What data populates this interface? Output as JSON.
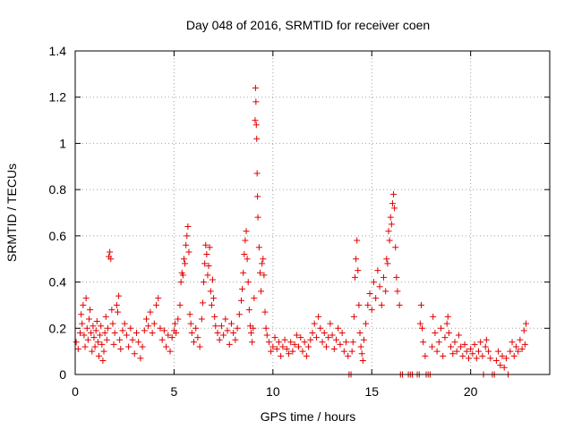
{
  "chart_data": {
    "type": "scatter",
    "title": "Day 048 of 2016, SRMTID for receiver coen",
    "xlabel": "GPS time / hours",
    "ylabel": "SRMTID / TECUs",
    "xlim": [
      0,
      24
    ],
    "ylim": [
      0,
      1.4
    ],
    "x_ticks": [
      0,
      5,
      10,
      15,
      20
    ],
    "x_tick_labels": [
      "0",
      "5",
      "10",
      "15",
      "20"
    ],
    "y_ticks": [
      0,
      0.2,
      0.4,
      0.6,
      0.8,
      1.0,
      1.2,
      1.4
    ],
    "y_tick_labels": [
      "0",
      "0.2",
      "0.4",
      "0.6",
      "0.8",
      "1",
      "1.2",
      "1.4"
    ],
    "grid": true,
    "marker": "+",
    "color": "#e00000",
    "series": [
      {
        "name": "SRMTID",
        "points": [
          [
            0.05,
            0.14
          ],
          [
            0.15,
            0.11
          ],
          [
            0.25,
            0.18
          ],
          [
            0.3,
            0.26
          ],
          [
            0.35,
            0.22
          ],
          [
            0.4,
            0.3
          ],
          [
            0.45,
            0.17
          ],
          [
            0.5,
            0.12
          ],
          [
            0.55,
            0.33
          ],
          [
            0.6,
            0.2
          ],
          [
            0.65,
            0.15
          ],
          [
            0.7,
            0.24
          ],
          [
            0.75,
            0.28
          ],
          [
            0.8,
            0.18
          ],
          [
            0.85,
            0.1
          ],
          [
            0.9,
            0.21
          ],
          [
            0.95,
            0.16
          ],
          [
            1.0,
            0.12
          ],
          [
            1.05,
            0.19
          ],
          [
            1.1,
            0.23
          ],
          [
            1.15,
            0.14
          ],
          [
            1.2,
            0.08
          ],
          [
            1.25,
            0.17
          ],
          [
            1.3,
            0.21
          ],
          [
            1.35,
            0.13
          ],
          [
            1.4,
            0.06
          ],
          [
            1.45,
            0.1
          ],
          [
            1.5,
            0.18
          ],
          [
            1.55,
            0.25
          ],
          [
            1.6,
            0.15
          ],
          [
            1.65,
            0.2
          ],
          [
            1.7,
            0.51
          ],
          [
            1.75,
            0.53
          ],
          [
            1.8,
            0.5
          ],
          [
            1.85,
            0.28
          ],
          [
            1.9,
            0.22
          ],
          [
            1.95,
            0.13
          ],
          [
            2.0,
            0.18
          ],
          [
            2.1,
            0.3
          ],
          [
            2.15,
            0.27
          ],
          [
            2.2,
            0.34
          ],
          [
            2.25,
            0.15
          ],
          [
            2.3,
            0.11
          ],
          [
            2.4,
            0.19
          ],
          [
            2.5,
            0.22
          ],
          [
            2.6,
            0.17
          ],
          [
            2.7,
            0.12
          ],
          [
            2.8,
            0.2
          ],
          [
            2.9,
            0.15
          ],
          [
            3.0,
            0.09
          ],
          [
            3.1,
            0.18
          ],
          [
            3.2,
            0.14
          ],
          [
            3.3,
            0.07
          ],
          [
            3.4,
            0.12
          ],
          [
            3.5,
            0.19
          ],
          [
            3.6,
            0.24
          ],
          [
            3.7,
            0.21
          ],
          [
            3.8,
            0.27
          ],
          [
            3.9,
            0.18
          ],
          [
            4.0,
            0.22
          ],
          [
            4.1,
            0.3
          ],
          [
            4.2,
            0.33
          ],
          [
            4.3,
            0.2
          ],
          [
            4.4,
            0.15
          ],
          [
            4.5,
            0.19
          ],
          [
            4.6,
            0.12
          ],
          [
            4.7,
            0.17
          ],
          [
            4.8,
            0.1
          ],
          [
            4.9,
            0.16
          ],
          [
            5.0,
            0.19
          ],
          [
            5.05,
            0.22
          ],
          [
            5.1,
            0.18
          ],
          [
            5.2,
            0.24
          ],
          [
            5.3,
            0.3
          ],
          [
            5.35,
            0.4
          ],
          [
            5.4,
            0.44
          ],
          [
            5.45,
            0.43
          ],
          [
            5.5,
            0.5
          ],
          [
            5.55,
            0.48
          ],
          [
            5.6,
            0.56
          ],
          [
            5.65,
            0.6
          ],
          [
            5.7,
            0.64
          ],
          [
            5.75,
            0.53
          ],
          [
            5.8,
            0.26
          ],
          [
            5.85,
            0.22
          ],
          [
            5.9,
            0.18
          ],
          [
            6.0,
            0.14
          ],
          [
            6.1,
            0.2
          ],
          [
            6.2,
            0.16
          ],
          [
            6.3,
            0.12
          ],
          [
            6.4,
            0.24
          ],
          [
            6.45,
            0.31
          ],
          [
            6.5,
            0.4
          ],
          [
            6.55,
            0.48
          ],
          [
            6.6,
            0.56
          ],
          [
            6.65,
            0.52
          ],
          [
            6.7,
            0.43
          ],
          [
            6.75,
            0.47
          ],
          [
            6.8,
            0.55
          ],
          [
            6.85,
            0.36
          ],
          [
            6.9,
            0.3
          ],
          [
            6.95,
            0.41
          ],
          [
            7.0,
            0.33
          ],
          [
            7.05,
            0.25
          ],
          [
            7.1,
            0.21
          ],
          [
            7.2,
            0.18
          ],
          [
            7.3,
            0.15
          ],
          [
            7.4,
            0.21
          ],
          [
            7.5,
            0.17
          ],
          [
            7.6,
            0.24
          ],
          [
            7.7,
            0.19
          ],
          [
            7.8,
            0.13
          ],
          [
            7.9,
            0.22
          ],
          [
            8.0,
            0.18
          ],
          [
            8.1,
            0.15
          ],
          [
            8.2,
            0.2
          ],
          [
            8.3,
            0.26
          ],
          [
            8.4,
            0.32
          ],
          [
            8.45,
            0.37
          ],
          [
            8.5,
            0.44
          ],
          [
            8.55,
            0.52
          ],
          [
            8.6,
            0.58
          ],
          [
            8.65,
            0.62
          ],
          [
            8.7,
            0.5
          ],
          [
            8.75,
            0.4
          ],
          [
            8.8,
            0.28
          ],
          [
            8.85,
            0.21
          ],
          [
            8.9,
            0.18
          ],
          [
            8.95,
            0.14
          ],
          [
            9.0,
            0.2
          ],
          [
            9.05,
            0.33
          ],
          [
            9.1,
            1.1
          ],
          [
            9.12,
            1.24
          ],
          [
            9.14,
            1.18
          ],
          [
            9.16,
            1.08
          ],
          [
            9.18,
            1.02
          ],
          [
            9.2,
            0.87
          ],
          [
            9.22,
            0.77
          ],
          [
            9.24,
            0.68
          ],
          [
            9.3,
            0.55
          ],
          [
            9.35,
            0.44
          ],
          [
            9.4,
            0.36
          ],
          [
            9.45,
            0.48
          ],
          [
            9.5,
            0.5
          ],
          [
            9.55,
            0.43
          ],
          [
            9.6,
            0.27
          ],
          [
            9.65,
            0.2
          ],
          [
            9.7,
            0.17
          ],
          [
            9.8,
            0.14
          ],
          [
            9.9,
            0.1
          ],
          [
            10.0,
            0.12
          ],
          [
            10.1,
            0.16
          ],
          [
            10.2,
            0.11
          ],
          [
            10.3,
            0.14
          ],
          [
            10.4,
            0.08
          ],
          [
            10.5,
            0.12
          ],
          [
            10.6,
            0.15
          ],
          [
            10.7,
            0.11
          ],
          [
            10.8,
            0.09
          ],
          [
            10.9,
            0.14
          ],
          [
            11.0,
            0.1
          ],
          [
            11.1,
            0.13
          ],
          [
            11.2,
            0.17
          ],
          [
            11.3,
            0.12
          ],
          [
            11.4,
            0.16
          ],
          [
            11.5,
            0.1
          ],
          [
            11.6,
            0.14
          ],
          [
            11.7,
            0.08
          ],
          [
            11.8,
            0.12
          ],
          [
            11.9,
            0.15
          ],
          [
            12.0,
            0.18
          ],
          [
            12.1,
            0.22
          ],
          [
            12.2,
            0.16
          ],
          [
            12.3,
            0.25
          ],
          [
            12.4,
            0.2
          ],
          [
            12.5,
            0.14
          ],
          [
            12.6,
            0.18
          ],
          [
            12.7,
            0.12
          ],
          [
            12.8,
            0.16
          ],
          [
            12.9,
            0.22
          ],
          [
            13.0,
            0.17
          ],
          [
            13.1,
            0.11
          ],
          [
            13.2,
            0.15
          ],
          [
            13.3,
            0.2
          ],
          [
            13.4,
            0.13
          ],
          [
            13.5,
            0.18
          ],
          [
            13.6,
            0.1
          ],
          [
            13.7,
            0.14
          ],
          [
            13.8,
            0.08
          ],
          [
            13.85,
            0.0
          ],
          [
            13.95,
            0.0
          ],
          [
            14.0,
            0.1
          ],
          [
            14.05,
            0.14
          ],
          [
            14.1,
            0.25
          ],
          [
            14.15,
            0.42
          ],
          [
            14.2,
            0.5
          ],
          [
            14.25,
            0.58
          ],
          [
            14.3,
            0.45
          ],
          [
            14.35,
            0.3
          ],
          [
            14.4,
            0.18
          ],
          [
            14.45,
            0.12
          ],
          [
            14.5,
            0.09
          ],
          [
            14.55,
            0.06
          ],
          [
            14.6,
            0.15
          ],
          [
            14.7,
            0.22
          ],
          [
            14.8,
            0.3
          ],
          [
            14.9,
            0.35
          ],
          [
            15.0,
            0.28
          ],
          [
            15.1,
            0.4
          ],
          [
            15.2,
            0.33
          ],
          [
            15.3,
            0.45
          ],
          [
            15.4,
            0.38
          ],
          [
            15.5,
            0.3
          ],
          [
            15.6,
            0.42
          ],
          [
            15.7,
            0.36
          ],
          [
            15.75,
            0.5
          ],
          [
            15.8,
            0.48
          ],
          [
            15.85,
            0.62
          ],
          [
            15.9,
            0.58
          ],
          [
            15.95,
            0.68
          ],
          [
            16.0,
            0.65
          ],
          [
            16.05,
            0.74
          ],
          [
            16.1,
            0.78
          ],
          [
            16.15,
            0.72
          ],
          [
            16.2,
            0.55
          ],
          [
            16.25,
            0.42
          ],
          [
            16.3,
            0.36
          ],
          [
            16.4,
            0.3
          ],
          [
            16.45,
            0.0
          ],
          [
            16.55,
            0.0
          ],
          [
            16.85,
            0.0
          ],
          [
            16.95,
            0.0
          ],
          [
            17.05,
            0.0
          ],
          [
            17.3,
            0.0
          ],
          [
            17.4,
            0.0
          ],
          [
            17.45,
            0.22
          ],
          [
            17.5,
            0.3
          ],
          [
            17.55,
            0.2
          ],
          [
            17.6,
            0.14
          ],
          [
            17.7,
            0.08
          ],
          [
            17.75,
            0.0
          ],
          [
            17.85,
            0.0
          ],
          [
            17.95,
            0.0
          ],
          [
            18.05,
            0.12
          ],
          [
            18.1,
            0.25
          ],
          [
            18.2,
            0.18
          ],
          [
            18.3,
            0.1
          ],
          [
            18.4,
            0.14
          ],
          [
            18.5,
            0.2
          ],
          [
            18.6,
            0.08
          ],
          [
            18.7,
            0.16
          ],
          [
            18.8,
            0.22
          ],
          [
            18.85,
            0.25
          ],
          [
            18.9,
            0.18
          ],
          [
            19.0,
            0.12
          ],
          [
            19.1,
            0.09
          ],
          [
            19.2,
            0.14
          ],
          [
            19.3,
            0.1
          ],
          [
            19.4,
            0.17
          ],
          [
            19.5,
            0.12
          ],
          [
            19.6,
            0.08
          ],
          [
            19.7,
            0.13
          ],
          [
            19.8,
            0.1
          ],
          [
            19.9,
            0.07
          ],
          [
            20.0,
            0.11
          ],
          [
            20.1,
            0.09
          ],
          [
            20.2,
            0.13
          ],
          [
            20.3,
            0.07
          ],
          [
            20.4,
            0.1
          ],
          [
            20.5,
            0.14
          ],
          [
            20.6,
            0.08
          ],
          [
            20.65,
            0.0
          ],
          [
            20.75,
            0.12
          ],
          [
            20.8,
            0.15
          ],
          [
            20.9,
            0.1
          ],
          [
            21.0,
            0.07
          ],
          [
            21.1,
            0.0
          ],
          [
            21.2,
            0.0
          ],
          [
            21.3,
            0.06
          ],
          [
            21.4,
            0.1
          ],
          [
            21.5,
            0.04
          ],
          [
            21.6,
            0.08
          ],
          [
            21.7,
            0.03
          ],
          [
            21.8,
            0.07
          ],
          [
            21.9,
            0.0
          ],
          [
            22.0,
            0.1
          ],
          [
            22.1,
            0.14
          ],
          [
            22.2,
            0.08
          ],
          [
            22.3,
            0.12
          ],
          [
            22.4,
            0.1
          ],
          [
            22.5,
            0.15
          ],
          [
            22.6,
            0.11
          ],
          [
            22.7,
            0.19
          ],
          [
            22.75,
            0.13
          ],
          [
            22.8,
            0.22
          ]
        ]
      }
    ]
  }
}
